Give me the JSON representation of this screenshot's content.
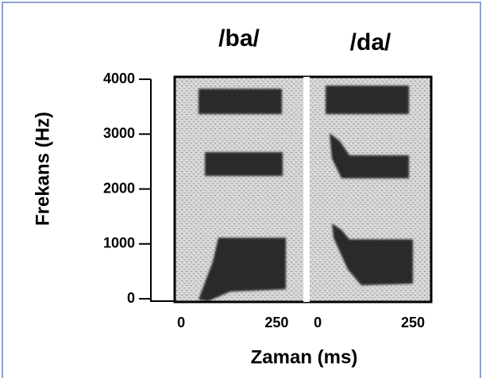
{
  "chart_data": {
    "type": "spectrogram",
    "y_label": "Frekans (Hz)",
    "x_label": "Zaman (ms)",
    "ylim": [
      0,
      4000
    ],
    "yticks": [
      0,
      1000,
      2000,
      3000,
      4000
    ],
    "panels": [
      {
        "title": "/ba/",
        "xlim": [
          -17,
          320
        ],
        "xticks": [
          0,
          250
        ]
      },
      {
        "title": "/da/",
        "xlim": [
          -21,
          298
        ],
        "xticks": [
          0,
          250
        ]
      }
    ]
  }
}
